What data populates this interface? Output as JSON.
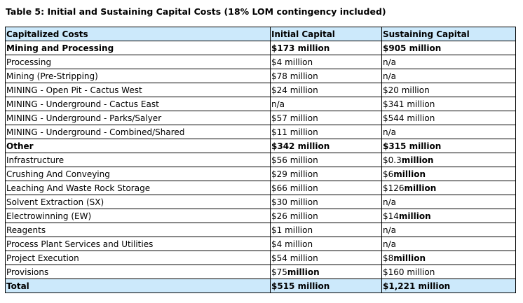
{
  "title": "Table 5: Initial and Sustaining Capital Costs (18% LOM contingency included)",
  "columns": [
    "Capitalized Costs",
    "Initial Capital",
    "Sustaining Capital"
  ],
  "rows": [
    {
      "style": "bold",
      "label": "Mining and Processing",
      "initial": [
        "$173 million",
        ""
      ],
      "sustaining": [
        "$905 million",
        ""
      ]
    },
    {
      "style": "",
      "label": "Processing",
      "initial": [
        "$4 million",
        ""
      ],
      "sustaining": [
        "n/a",
        ""
      ]
    },
    {
      "style": "",
      "label": "Mining (Pre-Stripping)",
      "initial": [
        "$78 million",
        ""
      ],
      "sustaining": [
        "n/a",
        ""
      ]
    },
    {
      "style": "",
      "label": "MINING - Open Pit - Cactus West",
      "initial": [
        "$24 million",
        ""
      ],
      "sustaining": [
        "$20 million",
        ""
      ]
    },
    {
      "style": "",
      "label": "MINING - Underground - Cactus East",
      "initial": [
        "n/a",
        ""
      ],
      "sustaining": [
        "$341 million",
        ""
      ]
    },
    {
      "style": "",
      "label": "MINING - Underground - Parks/Salyer",
      "initial": [
        "$57 million",
        ""
      ],
      "sustaining": [
        "$544 million",
        ""
      ]
    },
    {
      "style": "",
      "label": "MINING - Underground - Combined/Shared",
      "initial": [
        "$11 million",
        ""
      ],
      "sustaining": [
        "n/a",
        ""
      ]
    },
    {
      "style": "bold",
      "label": "Other",
      "initial": [
        "$342 million",
        ""
      ],
      "sustaining": [
        "$315 million",
        ""
      ]
    },
    {
      "style": "",
      "label": "Infrastructure",
      "initial": [
        "$56 million",
        ""
      ],
      "sustaining": [
        "$0.3",
        "million"
      ]
    },
    {
      "style": "",
      "label": "Crushing And Conveying",
      "initial": [
        "$29 million",
        ""
      ],
      "sustaining": [
        "$6",
        "million"
      ]
    },
    {
      "style": "",
      "label": "Leaching And Waste Rock Storage",
      "initial": [
        "$66 million",
        ""
      ],
      "sustaining": [
        "$126",
        "million"
      ]
    },
    {
      "style": "",
      "label": "Solvent Extraction (SX)",
      "initial": [
        "$30 million",
        ""
      ],
      "sustaining": [
        "n/a",
        ""
      ]
    },
    {
      "style": "",
      "label": "Electrowinning (EW)",
      "initial": [
        "$26 million",
        ""
      ],
      "sustaining": [
        "$14",
        "million"
      ]
    },
    {
      "style": "",
      "label": "Reagents",
      "initial": [
        "$1 million",
        ""
      ],
      "sustaining": [
        "n/a",
        ""
      ]
    },
    {
      "style": "",
      "label": "Process Plant Services and Utilities",
      "initial": [
        "$4 million",
        ""
      ],
      "sustaining": [
        "n/a",
        ""
      ]
    },
    {
      "style": "",
      "label": "Project Execution",
      "initial": [
        "$54 million",
        ""
      ],
      "sustaining": [
        "$8",
        "million"
      ]
    },
    {
      "style": "",
      "label": "Provisions",
      "initial": [
        "$75",
        "million"
      ],
      "sustaining": [
        "$160 million",
        ""
      ]
    },
    {
      "style": "hl",
      "label": "Total",
      "initial": [
        "$515 million",
        ""
      ],
      "sustaining": [
        "$1,221 million",
        ""
      ]
    }
  ],
  "colors": {
    "header_bg": "#cce9fb",
    "border": "#000000"
  }
}
